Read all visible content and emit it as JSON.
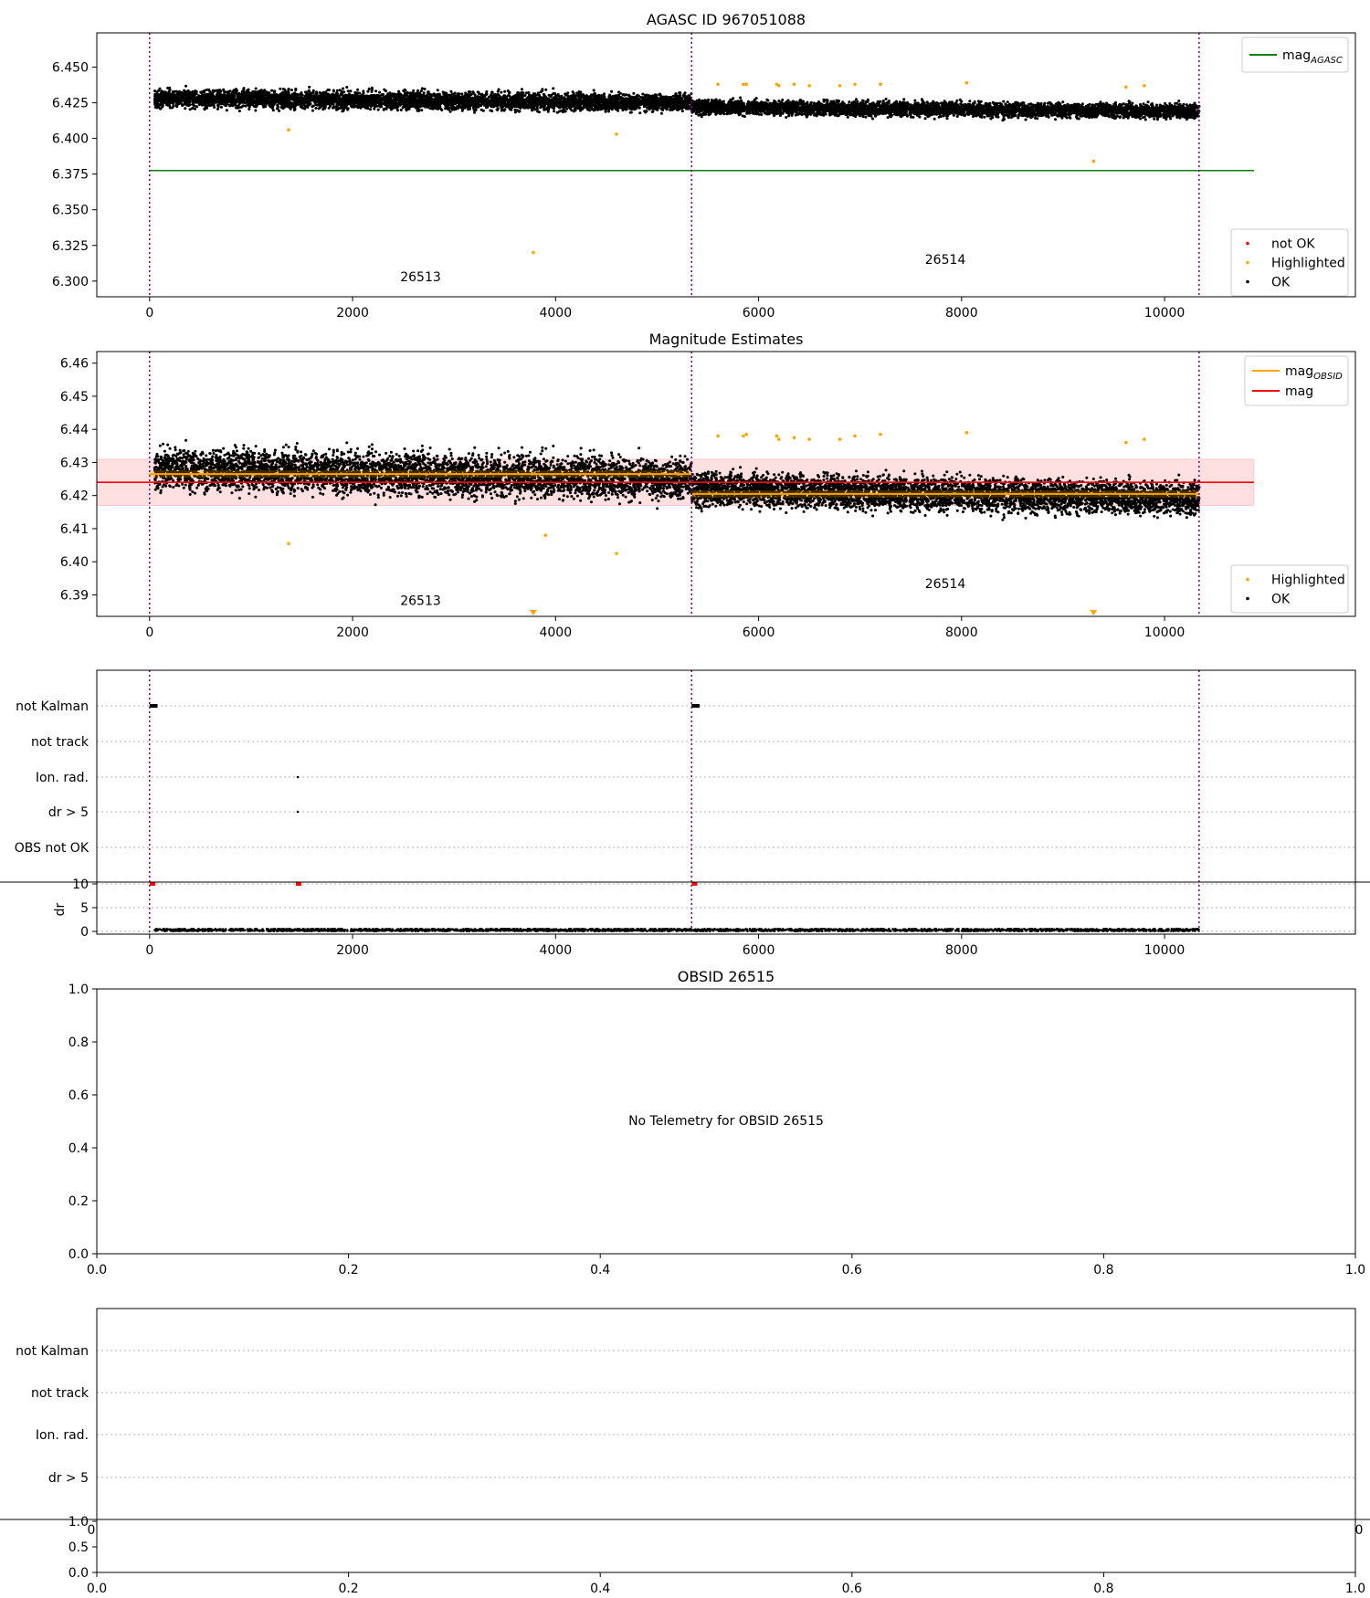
{
  "figure": {
    "panels": [
      {
        "id": "agasc",
        "title": "AGASC ID 967051088",
        "legend_top": [
          {
            "label": "mag",
            "sub": "AGASC",
            "color": "#008000",
            "kind": "line"
          }
        ],
        "legend_bottom": [
          {
            "label": "not OK",
            "color": "#ff0000",
            "kind": "dot"
          },
          {
            "label": "Highlighted",
            "color": "#ffa500",
            "kind": "dot"
          },
          {
            "label": "OK",
            "color": "#000000",
            "kind": "dot"
          }
        ],
        "obsid_labels": [
          "26513",
          "26514"
        ]
      },
      {
        "id": "mag-estimates",
        "title": "Magnitude Estimates",
        "legend_top": [
          {
            "label": "mag",
            "sub": "OBSID",
            "color": "#ffa500",
            "kind": "line"
          },
          {
            "label": "mag",
            "sub": "",
            "color": "#ff0000",
            "kind": "line"
          }
        ],
        "legend_bottom": [
          {
            "label": "Highlighted",
            "color": "#ffa500",
            "kind": "dot"
          },
          {
            "label": "OK",
            "color": "#000000",
            "kind": "dot"
          }
        ],
        "obsid_labels": [
          "26513",
          "26514"
        ]
      },
      {
        "id": "flags",
        "flag_labels": [
          "not Kalman",
          "not track",
          "Ion. rad.",
          "dr > 5",
          "OBS not OK"
        ],
        "dr_label": "dr"
      },
      {
        "id": "obsid-26515",
        "title": "OBSID 26515",
        "message": "No Telemetry for OBSID 26515"
      },
      {
        "id": "flags-empty",
        "flag_labels": [
          "not Kalman",
          "not track",
          "Ion. rad.",
          "dr > 5"
        ]
      }
    ]
  },
  "chart_data": [
    {
      "type": "scatter",
      "title": "AGASC ID 967051088",
      "xlim": [
        -520,
        11880
      ],
      "ylim": [
        6.289,
        6.474
      ],
      "x_ticks": [
        0,
        2000,
        4000,
        6000,
        8000,
        10000
      ],
      "y_ticks": [
        6.3,
        6.325,
        6.35,
        6.375,
        6.4,
        6.425,
        6.45
      ],
      "obsid_boundaries": [
        0,
        5340,
        10340
      ],
      "obsid_label_positions": [
        {
          "text": "26513",
          "x": 2670,
          "y": 6.3
        },
        {
          "text": "26514",
          "x": 7840,
          "y": 6.312
        }
      ],
      "lines": [
        {
          "name": "mag_AGASC",
          "color": "#008000",
          "y": 6.3775,
          "x": [
            0,
            10880
          ]
        }
      ],
      "series": [
        {
          "name": "OK",
          "color": "#000000",
          "segments": [
            {
              "x": [
                50,
                5340
              ],
              "y_start": 6.428,
              "y_end": 6.425,
              "spread": 0.0055
            },
            {
              "x": [
                5340,
                10340
              ],
              "y_start": 6.422,
              "y_end": 6.419,
              "spread": 0.0045
            }
          ]
        },
        {
          "name": "Highlighted",
          "color": "#ffa500",
          "points": [
            [
              1370,
              6.406
            ],
            [
              3780,
              6.32
            ],
            [
              4600,
              6.403
            ],
            [
              5600,
              6.438
            ],
            [
              5850,
              6.438
            ],
            [
              5880,
              6.438
            ],
            [
              6180,
              6.438
            ],
            [
              6200,
              6.437
            ],
            [
              6350,
              6.438
            ],
            [
              6500,
              6.437
            ],
            [
              6800,
              6.437
            ],
            [
              6950,
              6.438
            ],
            [
              7200,
              6.438
            ],
            [
              8050,
              6.439
            ],
            [
              9300,
              6.384
            ],
            [
              9620,
              6.436
            ],
            [
              9800,
              6.437
            ]
          ]
        }
      ]
    },
    {
      "type": "scatter",
      "title": "Magnitude Estimates",
      "xlim": [
        -520,
        11880
      ],
      "ylim": [
        6.3835,
        6.4635
      ],
      "x_ticks": [
        0,
        2000,
        4000,
        6000,
        8000,
        10000
      ],
      "y_ticks": [
        6.39,
        6.4,
        6.41,
        6.42,
        6.43,
        6.44,
        6.45,
        6.46
      ],
      "obsid_boundaries": [
        0,
        5340,
        10340
      ],
      "obsid_label_positions": [
        {
          "text": "26513",
          "x": 2670,
          "y": 6.387
        },
        {
          "text": "26514",
          "x": 7840,
          "y": 6.392
        }
      ],
      "mag": 6.424,
      "mag_band": [
        6.417,
        6.431
      ],
      "mag_x": [
        -520,
        10880
      ],
      "mag_obsid": [
        {
          "x": [
            0,
            5340
          ],
          "y": 6.4265
        },
        {
          "x": [
            5340,
            10340
          ],
          "y": 6.4205
        }
      ],
      "series": [
        {
          "name": "OK",
          "color": "#000000",
          "segments": [
            {
              "x": [
                50,
                5340
              ],
              "y_start": 6.428,
              "y_end": 6.425,
              "spread": 0.0055
            },
            {
              "x": [
                5340,
                10340
              ],
              "y_start": 6.422,
              "y_end": 6.419,
              "spread": 0.0045
            }
          ]
        },
        {
          "name": "Highlighted",
          "color": "#ffa500",
          "points": [
            [
              1370,
              6.4055
            ],
            [
              3900,
              6.408
            ],
            [
              4600,
              6.4025
            ],
            [
              5600,
              6.438
            ],
            [
              5850,
              6.438
            ],
            [
              5880,
              6.4385
            ],
            [
              6180,
              6.438
            ],
            [
              6200,
              6.437
            ],
            [
              6350,
              6.4375
            ],
            [
              6500,
              6.437
            ],
            [
              6800,
              6.437
            ],
            [
              6950,
              6.438
            ],
            [
              7200,
              6.4385
            ],
            [
              8050,
              6.439
            ],
            [
              9620,
              6.436
            ],
            [
              9800,
              6.437
            ]
          ],
          "clipped_markers": [
            3780,
            9300
          ]
        }
      ]
    },
    {
      "type": "scatter",
      "title": "",
      "xlim": [
        -520,
        11880
      ],
      "x_ticks": [
        0,
        2000,
        4000,
        6000,
        8000,
        10000
      ],
      "categories": [
        "not Kalman",
        "not track",
        "Ion. rad.",
        "dr > 5",
        "OBS not OK"
      ],
      "obsid_boundaries": [
        0,
        5340,
        10340
      ],
      "flag_points": [
        {
          "category": "not Kalman",
          "x": [
            0,
            60
          ]
        },
        {
          "category": "not Kalman",
          "x": [
            5340,
            5400
          ]
        },
        {
          "category": "Ion. rad.",
          "x": [
            1460,
            1460
          ]
        },
        {
          "category": "dr > 5",
          "x": [
            1460,
            1460
          ]
        }
      ],
      "dr": {
        "ylim": [
          0,
          10
        ],
        "y_ticks": [
          0,
          5,
          10
        ],
        "ylabel": "dr",
        "baseline": 0.3,
        "red_markers": [
          [
            20,
            10
          ],
          [
            1460,
            10
          ],
          [
            5360,
            10
          ]
        ]
      }
    },
    {
      "type": "scatter",
      "title": "OBSID 26515",
      "xlim": [
        0,
        1
      ],
      "ylim": [
        0,
        1
      ],
      "x_ticks": [
        0.0,
        0.2,
        0.4,
        0.6,
        0.8,
        1.0
      ],
      "y_ticks": [
        0.0,
        0.2,
        0.4,
        0.6,
        0.8,
        1.0
      ],
      "series": []
    },
    {
      "type": "scatter",
      "title": "",
      "categories": [
        "not Kalman",
        "not track",
        "Ion. rad.",
        "dr > 5"
      ],
      "sub_ylim": [
        0,
        1
      ],
      "sub_y_ticks": [
        0.0,
        0.5,
        1.0
      ],
      "x_ticks": [
        0.0,
        0.2,
        0.4,
        0.6,
        0.8,
        1.0
      ],
      "series": []
    }
  ]
}
